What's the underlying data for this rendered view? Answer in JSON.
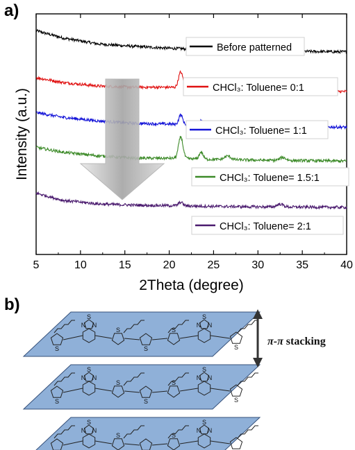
{
  "panels": {
    "a": "a)",
    "b": "b)"
  },
  "chart_data": {
    "type": "line",
    "xlabel": "2Theta (degree)",
    "ylabel": "Intensity (a.u.)",
    "xlim": [
      5,
      40
    ],
    "xticks": [
      "5",
      "10",
      "15",
      "20",
      "25",
      "30",
      "35",
      "40"
    ],
    "y_ticks_shown": false,
    "legend_placement": "labels on each curve",
    "annotation": "large gray downward arrow over traces",
    "series": [
      {
        "name": "Before patterned",
        "color": "#000000",
        "x": [
          5,
          8,
          12,
          16,
          20,
          25,
          30,
          35,
          40
        ],
        "y": [
          0.93,
          0.9,
          0.875,
          0.865,
          0.857,
          0.851,
          0.847,
          0.844,
          0.842
        ],
        "peaks": []
      },
      {
        "name": "CHCl₃: Toluene= 0:1",
        "color": "#e01010",
        "x": [
          5,
          8,
          12,
          16,
          20,
          25,
          30,
          35,
          40
        ],
        "y": [
          0.735,
          0.715,
          0.7,
          0.695,
          0.695,
          0.688,
          0.684,
          0.68,
          0.677
        ],
        "peaks": [
          [
            21.3,
            0.065,
            0.35
          ],
          [
            23.7,
            0.02,
            0.3
          ],
          [
            26.5,
            0.012,
            0.5
          ],
          [
            32.5,
            0.012,
            0.5
          ]
        ]
      },
      {
        "name": "CHCl₃: Toluene= 1:1",
        "color": "#1414d8",
        "x": [
          5,
          8,
          12,
          16,
          20,
          25,
          30,
          35,
          40
        ],
        "y": [
          0.59,
          0.57,
          0.555,
          0.545,
          0.542,
          0.537,
          0.534,
          0.531,
          0.529
        ],
        "peaks": [
          [
            21.3,
            0.04,
            0.3
          ],
          [
            23.6,
            0.022,
            0.3
          ],
          [
            32.8,
            0.008,
            0.5
          ]
        ]
      },
      {
        "name": "CHCl₃: Toluene= 1.5:1",
        "color": "#3c8a28",
        "x": [
          5,
          8,
          12,
          16,
          20,
          25,
          30,
          35,
          40
        ],
        "y": [
          0.445,
          0.425,
          0.41,
          0.4,
          0.4,
          0.395,
          0.392,
          0.39,
          0.388
        ],
        "peaks": [
          [
            21.3,
            0.09,
            0.35
          ],
          [
            23.6,
            0.03,
            0.3
          ],
          [
            26.6,
            0.015,
            0.5
          ],
          [
            32.8,
            0.012,
            0.5
          ]
        ]
      },
      {
        "name": "CHCl₃: Toluene= 2:1",
        "color": "#4a1a6e",
        "x": [
          5,
          8,
          12,
          16,
          20,
          25,
          30,
          35,
          40
        ],
        "y": [
          0.255,
          0.225,
          0.21,
          0.205,
          0.203,
          0.2,
          0.198,
          0.197,
          0.196
        ],
        "peaks": [
          [
            21.3,
            0.015,
            0.35
          ],
          [
            32.5,
            0.012,
            0.5
          ]
        ]
      }
    ]
  },
  "diagram": {
    "stack_label_pi1": "π",
    "stack_label_dash": "-",
    "stack_label_pi2": "π",
    "stack_label_rest": " stacking",
    "n_layers": 3,
    "layer_color": "#8fb0d8",
    "atom_s": "S",
    "atom_n": "N"
  }
}
